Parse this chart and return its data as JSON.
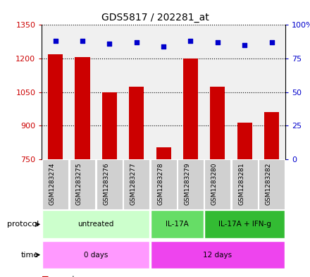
{
  "title": "GDS5817 / 202281_at",
  "samples": [
    "GSM1283274",
    "GSM1283275",
    "GSM1283276",
    "GSM1283277",
    "GSM1283278",
    "GSM1283279",
    "GSM1283280",
    "GSM1283281",
    "GSM1283282"
  ],
  "counts": [
    1220,
    1205,
    1050,
    1075,
    805,
    1200,
    1075,
    915,
    960
  ],
  "percentile_ranks": [
    88,
    88,
    86,
    87,
    84,
    88,
    87,
    85,
    87
  ],
  "ylim_left": [
    750,
    1350
  ],
  "ylim_right": [
    0,
    100
  ],
  "yticks_left": [
    750,
    900,
    1050,
    1200,
    1350
  ],
  "yticks_right": [
    0,
    25,
    50,
    75,
    100
  ],
  "bar_color": "#cc0000",
  "dot_color": "#0000cc",
  "protocol_labels": [
    "untreated",
    "IL-17A",
    "IL-17A + IFN-g"
  ],
  "protocol_ranges": [
    [
      0,
      4
    ],
    [
      4,
      6
    ],
    [
      6,
      9
    ]
  ],
  "protocol_colors": [
    "#ccffcc",
    "#66dd66",
    "#33bb33"
  ],
  "time_labels": [
    "0 days",
    "12 days"
  ],
  "time_ranges": [
    [
      0,
      4
    ],
    [
      4,
      9
    ]
  ],
  "time_color_left": "#ff99ff",
  "time_color_right": "#ee44ee",
  "legend_count_color": "#cc0000",
  "legend_dot_color": "#0000cc",
  "bg_color": "#ffffff",
  "plot_bg_color": "#f0f0f0",
  "sample_box_color": "#d0d0d0",
  "grid_color": "black"
}
